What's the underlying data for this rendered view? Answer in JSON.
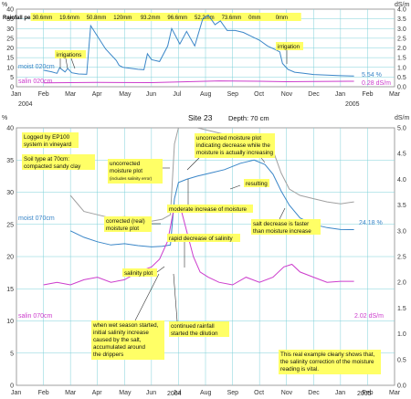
{
  "colors": {
    "moisture": "#3a86c8",
    "salinity": "#cc3ccc",
    "uncorrected": "#a0a0a0",
    "note_bg": "#ffff66",
    "grid": "#7fd0d8",
    "frame": "#888888"
  },
  "chart_data": [
    {
      "type": "line",
      "x_axis": {
        "ticks": [
          "Jan",
          "Feb",
          "Mar",
          "Apr",
          "May",
          "Jun",
          "Jul",
          "Aug",
          "Sep",
          "Oct",
          "Nov",
          "Dec",
          "Jan",
          "Feb",
          "Mar"
        ],
        "year_labels": [
          "2004",
          "2005"
        ]
      },
      "y_left": {
        "unit": "%",
        "ticks": [
          "0",
          "5",
          "10",
          "15",
          "20",
          "25",
          "30",
          "35",
          "40"
        ],
        "ylim": [
          0,
          40
        ]
      },
      "y_right": {
        "unit": "dS/m",
        "ticks": [
          "0.0",
          "0.5",
          "1.0",
          "1.5",
          "2.0",
          "2.5",
          "3.0",
          "3.5",
          "4.0"
        ],
        "ylim": [
          0,
          4
        ]
      },
      "rainfall": {
        "label": "Rainfall per month:",
        "values": [
          "30.6mm",
          "19.6mm",
          "50.8mm",
          "120mm",
          "93.2mm",
          "96.6mm",
          "52.2mm",
          "73.6mm",
          "0mm",
          "0mm"
        ]
      },
      "series": [
        {
          "name": "moist 020cm",
          "end_label": "5.54 %",
          "x": [
            1.0,
            1.3,
            1.5,
            1.6,
            1.8,
            1.9,
            2.05,
            2.3,
            2.6,
            2.75,
            3.3,
            3.7,
            3.8,
            3.95,
            4.5,
            4.72,
            4.85,
            5.0,
            5.3,
            5.6,
            5.75,
            6.05,
            6.3,
            6.6,
            6.9,
            7.1,
            7.35,
            7.55,
            7.8,
            8.1,
            8.4,
            8.7,
            9.0,
            9.3,
            9.6,
            9.75,
            9.85,
            10.05,
            10.3,
            10.6,
            11.0,
            11.5,
            12.0,
            12.5
          ],
          "y": [
            8.5,
            7.7,
            6.9,
            9.8,
            7.6,
            9.4,
            7.2,
            6.6,
            6.4,
            31.5,
            19.5,
            13.5,
            11.0,
            10.0,
            9.0,
            8.8,
            17.0,
            14.0,
            13.0,
            21.0,
            30.0,
            22.0,
            28.5,
            21.0,
            35.0,
            37.0,
            32.0,
            34.0,
            29.0,
            29.0,
            28.0,
            26.0,
            24.0,
            21.0,
            19.0,
            18.0,
            12.0,
            9.0,
            7.5,
            7.0,
            6.3,
            6.0,
            5.7,
            5.5
          ]
        },
        {
          "name": "salin 020cm",
          "end_label": "0.28 dS/m",
          "x": [
            1.0,
            3.0,
            5.0,
            6.0,
            7.5,
            9.0,
            10.0,
            11.0,
            12.5
          ],
          "y": [
            0.2,
            0.22,
            0.21,
            0.25,
            0.3,
            0.28,
            0.26,
            0.27,
            0.28
          ]
        }
      ],
      "annotations": [
        "irrigations",
        "irrigation"
      ]
    },
    {
      "type": "line",
      "title": "Site 23",
      "subtitle": "Depth: 70 cm",
      "x_axis": {
        "ticks": [
          "Jan",
          "Feb",
          "Mar",
          "Apr",
          "May",
          "Jun",
          "Jul",
          "Aug",
          "Sep",
          "Oct",
          "Nov",
          "Dec",
          "Jan",
          "Feb",
          "Mar"
        ],
        "year_labels": [
          "2004",
          "2005"
        ]
      },
      "y_left": {
        "unit": "%",
        "ticks": [
          "0",
          "5",
          "10",
          "15",
          "20",
          "25",
          "30",
          "35",
          "40"
        ],
        "ylim": [
          0,
          40
        ]
      },
      "y_right": {
        "unit": "dS/m",
        "ticks": [
          "0.0",
          "0.5",
          "1.0",
          "1.5",
          "2.0",
          "2.5",
          "3.0",
          "3.5",
          "4.0",
          "4.5",
          "5.0"
        ],
        "ylim": [
          0,
          5
        ]
      },
      "series": [
        {
          "name": "moist 070cm",
          "end_label": "24.18 %",
          "x": [
            2.0,
            2.5,
            3.0,
            3.5,
            4.0,
            4.5,
            5.0,
            5.4,
            5.7,
            5.85,
            6.0,
            6.3,
            6.7,
            7.2,
            7.7,
            8.3,
            8.8,
            9.2,
            9.5,
            9.8,
            10.1,
            10.5,
            11.0,
            11.5,
            12.0,
            12.5
          ],
          "y": [
            24.0,
            23.0,
            22.3,
            21.8,
            22.0,
            21.7,
            21.5,
            21.6,
            21.8,
            29.0,
            31.5,
            32.0,
            32.5,
            33.0,
            33.5,
            34.5,
            35.0,
            34.3,
            32.8,
            30.2,
            28.0,
            26.0,
            25.0,
            24.5,
            24.2,
            24.18
          ]
        },
        {
          "name": "uncorrected moisture",
          "end_label": "",
          "x": [
            2.0,
            2.5,
            3.0,
            3.5,
            4.0,
            4.5,
            5.0,
            5.4,
            5.7,
            5.85,
            6.0,
            6.3,
            6.7,
            7.2,
            7.7,
            8.3,
            8.8,
            9.2,
            9.5,
            9.8,
            10.1,
            10.5,
            11.0,
            11.5,
            12.0,
            12.5
          ],
          "y": [
            29.5,
            27.0,
            26.5,
            26.0,
            26.2,
            26.0,
            25.5,
            25.8,
            26.5,
            37.5,
            40.0,
            40.0,
            40.0,
            39.5,
            39.0,
            38.8,
            38.5,
            37.8,
            36.5,
            33.0,
            30.5,
            29.5,
            29.0,
            28.5,
            28.2,
            28.5
          ]
        },
        {
          "name": "salin 070cm",
          "end_label": "2.02 dS/m",
          "x": [
            1.0,
            1.5,
            2.0,
            2.5,
            3.0,
            3.5,
            4.0,
            4.5,
            5.0,
            5.3,
            5.6,
            5.8,
            5.95,
            6.1,
            6.3,
            6.55,
            6.8,
            7.1,
            7.5,
            8.0,
            8.5,
            9.0,
            9.5,
            9.9,
            10.2,
            10.5,
            11.0,
            11.5,
            12.0,
            12.5
          ],
          "y": [
            1.95,
            2.0,
            1.95,
            2.05,
            2.1,
            2.0,
            2.05,
            2.2,
            2.3,
            2.45,
            2.8,
            3.35,
            3.45,
            3.4,
            3.0,
            2.5,
            2.2,
            2.1,
            2.0,
            1.95,
            2.1,
            2.0,
            2.1,
            2.3,
            2.35,
            2.2,
            2.1,
            2.0,
            2.02,
            2.02
          ]
        }
      ],
      "annotations": {
        "logged": "Logged by EP100 system in vineyard",
        "soil": "Soil type at 70cm: compacted sandy clay",
        "uncorr_line1": "uncorrected moisture plot",
        "uncorr_line2": "(includes salinity error)",
        "uncorr_top_1": "uncorrected  moisture plot",
        "uncorr_top_2": "indicating decrease while the",
        "uncorr_top_3": "moisture is actually increasing",
        "resulting": "resulting",
        "moderate": "moderate increase of moisture",
        "corrected_1": "corrected (real)",
        "corrected_2": "moisture plot",
        "salt_1": "salt decrease is faster",
        "salt_2": "than moisture increase",
        "rapid": "rapid decrease of salinity",
        "salplot": "salinity plot",
        "wet_1": "when wet season started,",
        "wet_2": "initial salinity increase",
        "wet_3": "caused by the salt,",
        "wet_4": "accumulated around",
        "wet_5": "the drippers",
        "cont_1": "continued rainfall",
        "cont_2": "started the dilution",
        "real_1": "This real example clearly shows that,",
        "real_2": "the salinity correction of the moisture",
        "real_3": "reading is vital."
      }
    }
  ]
}
